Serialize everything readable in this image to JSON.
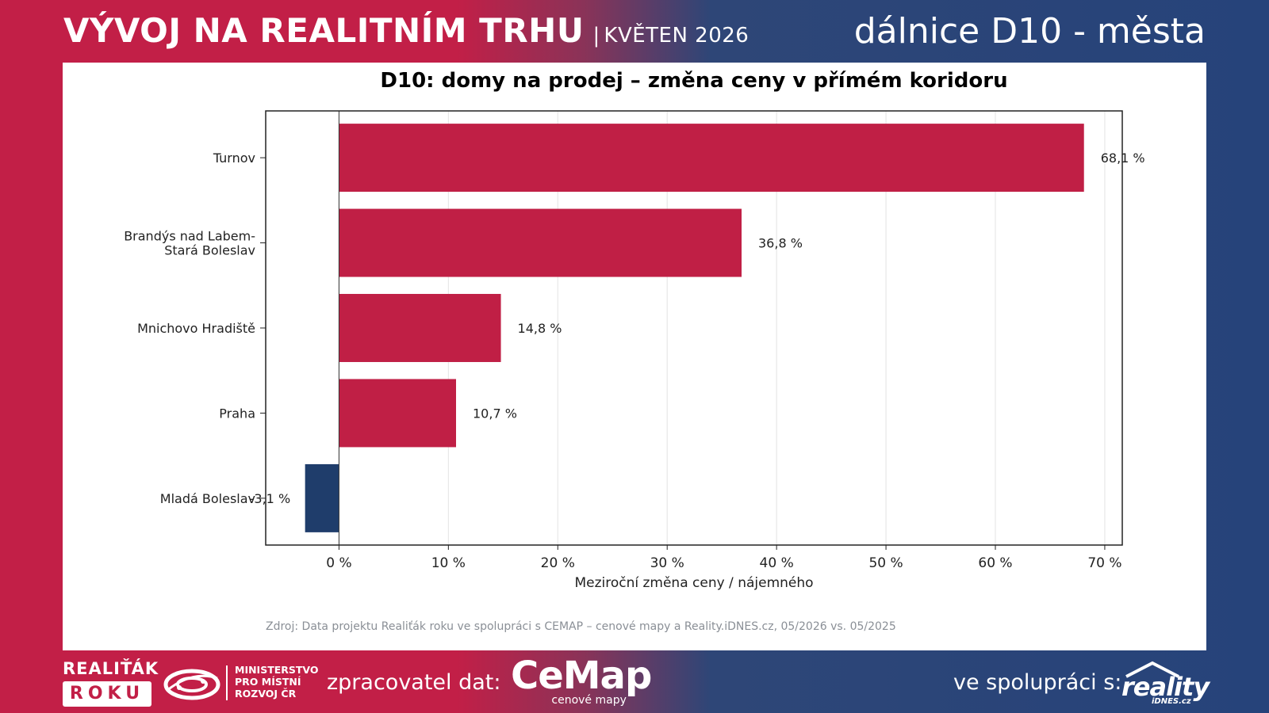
{
  "header": {
    "title": "VÝVOJ NA REALITNÍM TRHU",
    "separator": "|",
    "date": "KVĚTEN 2026",
    "subject": "dálnice D10 - města"
  },
  "source_note": "Zdroj: Data projektu Realiťák roku ve spolupráci s CEMAP – cenové mapy a Reality.iDNES.cz, 05/2026 vs. 05/2025",
  "footer": {
    "realitak_top": "REALIŤÁK",
    "realitak_box": "ROKU",
    "ministry_line1": "MINISTERSTVO",
    "ministry_line2": "PRO MÍSTNÍ",
    "ministry_line3": "ROZVOJ ČR",
    "processor_label": "zpracovatel dat:",
    "cemap_name": "CeMap",
    "cemap_sub": "cenové mapy",
    "partner_label": "ve spolupráci s:",
    "reality_word": "reality",
    "reality_sub": "iDNES.cz"
  },
  "colors": {
    "positive": "#c01f45",
    "negative": "#1f3d6b",
    "brand_red": "#c21f47",
    "brand_blue": "#26437a"
  },
  "chart_data": {
    "type": "bar",
    "orientation": "horizontal",
    "title": "D10: domy na prodej – změna ceny v přímém koridoru",
    "xlabel": "Meziroční změna ceny / nájemného",
    "ylabel": "",
    "categories": [
      "Turnov",
      "Brandýs nad Labem-\nStará Boleslav",
      "Mnichovo Hradiště",
      "Praha",
      "Mladá Boleslav"
    ],
    "values": [
      68.1,
      36.8,
      14.8,
      10.7,
      -3.1
    ],
    "value_labels": [
      "68,1 %",
      "36,8 %",
      "14,8 %",
      "10,7 %",
      "-3,1 %"
    ],
    "xlim": [
      -6.7,
      71.6
    ],
    "xticks": [
      0,
      10,
      20,
      30,
      40,
      50,
      60,
      70
    ],
    "xtick_labels": [
      "0 %",
      "10 %",
      "20 %",
      "30 %",
      "40 %",
      "50 %",
      "60 %",
      "70 %"
    ],
    "grid": "vertical",
    "legend": "none"
  }
}
